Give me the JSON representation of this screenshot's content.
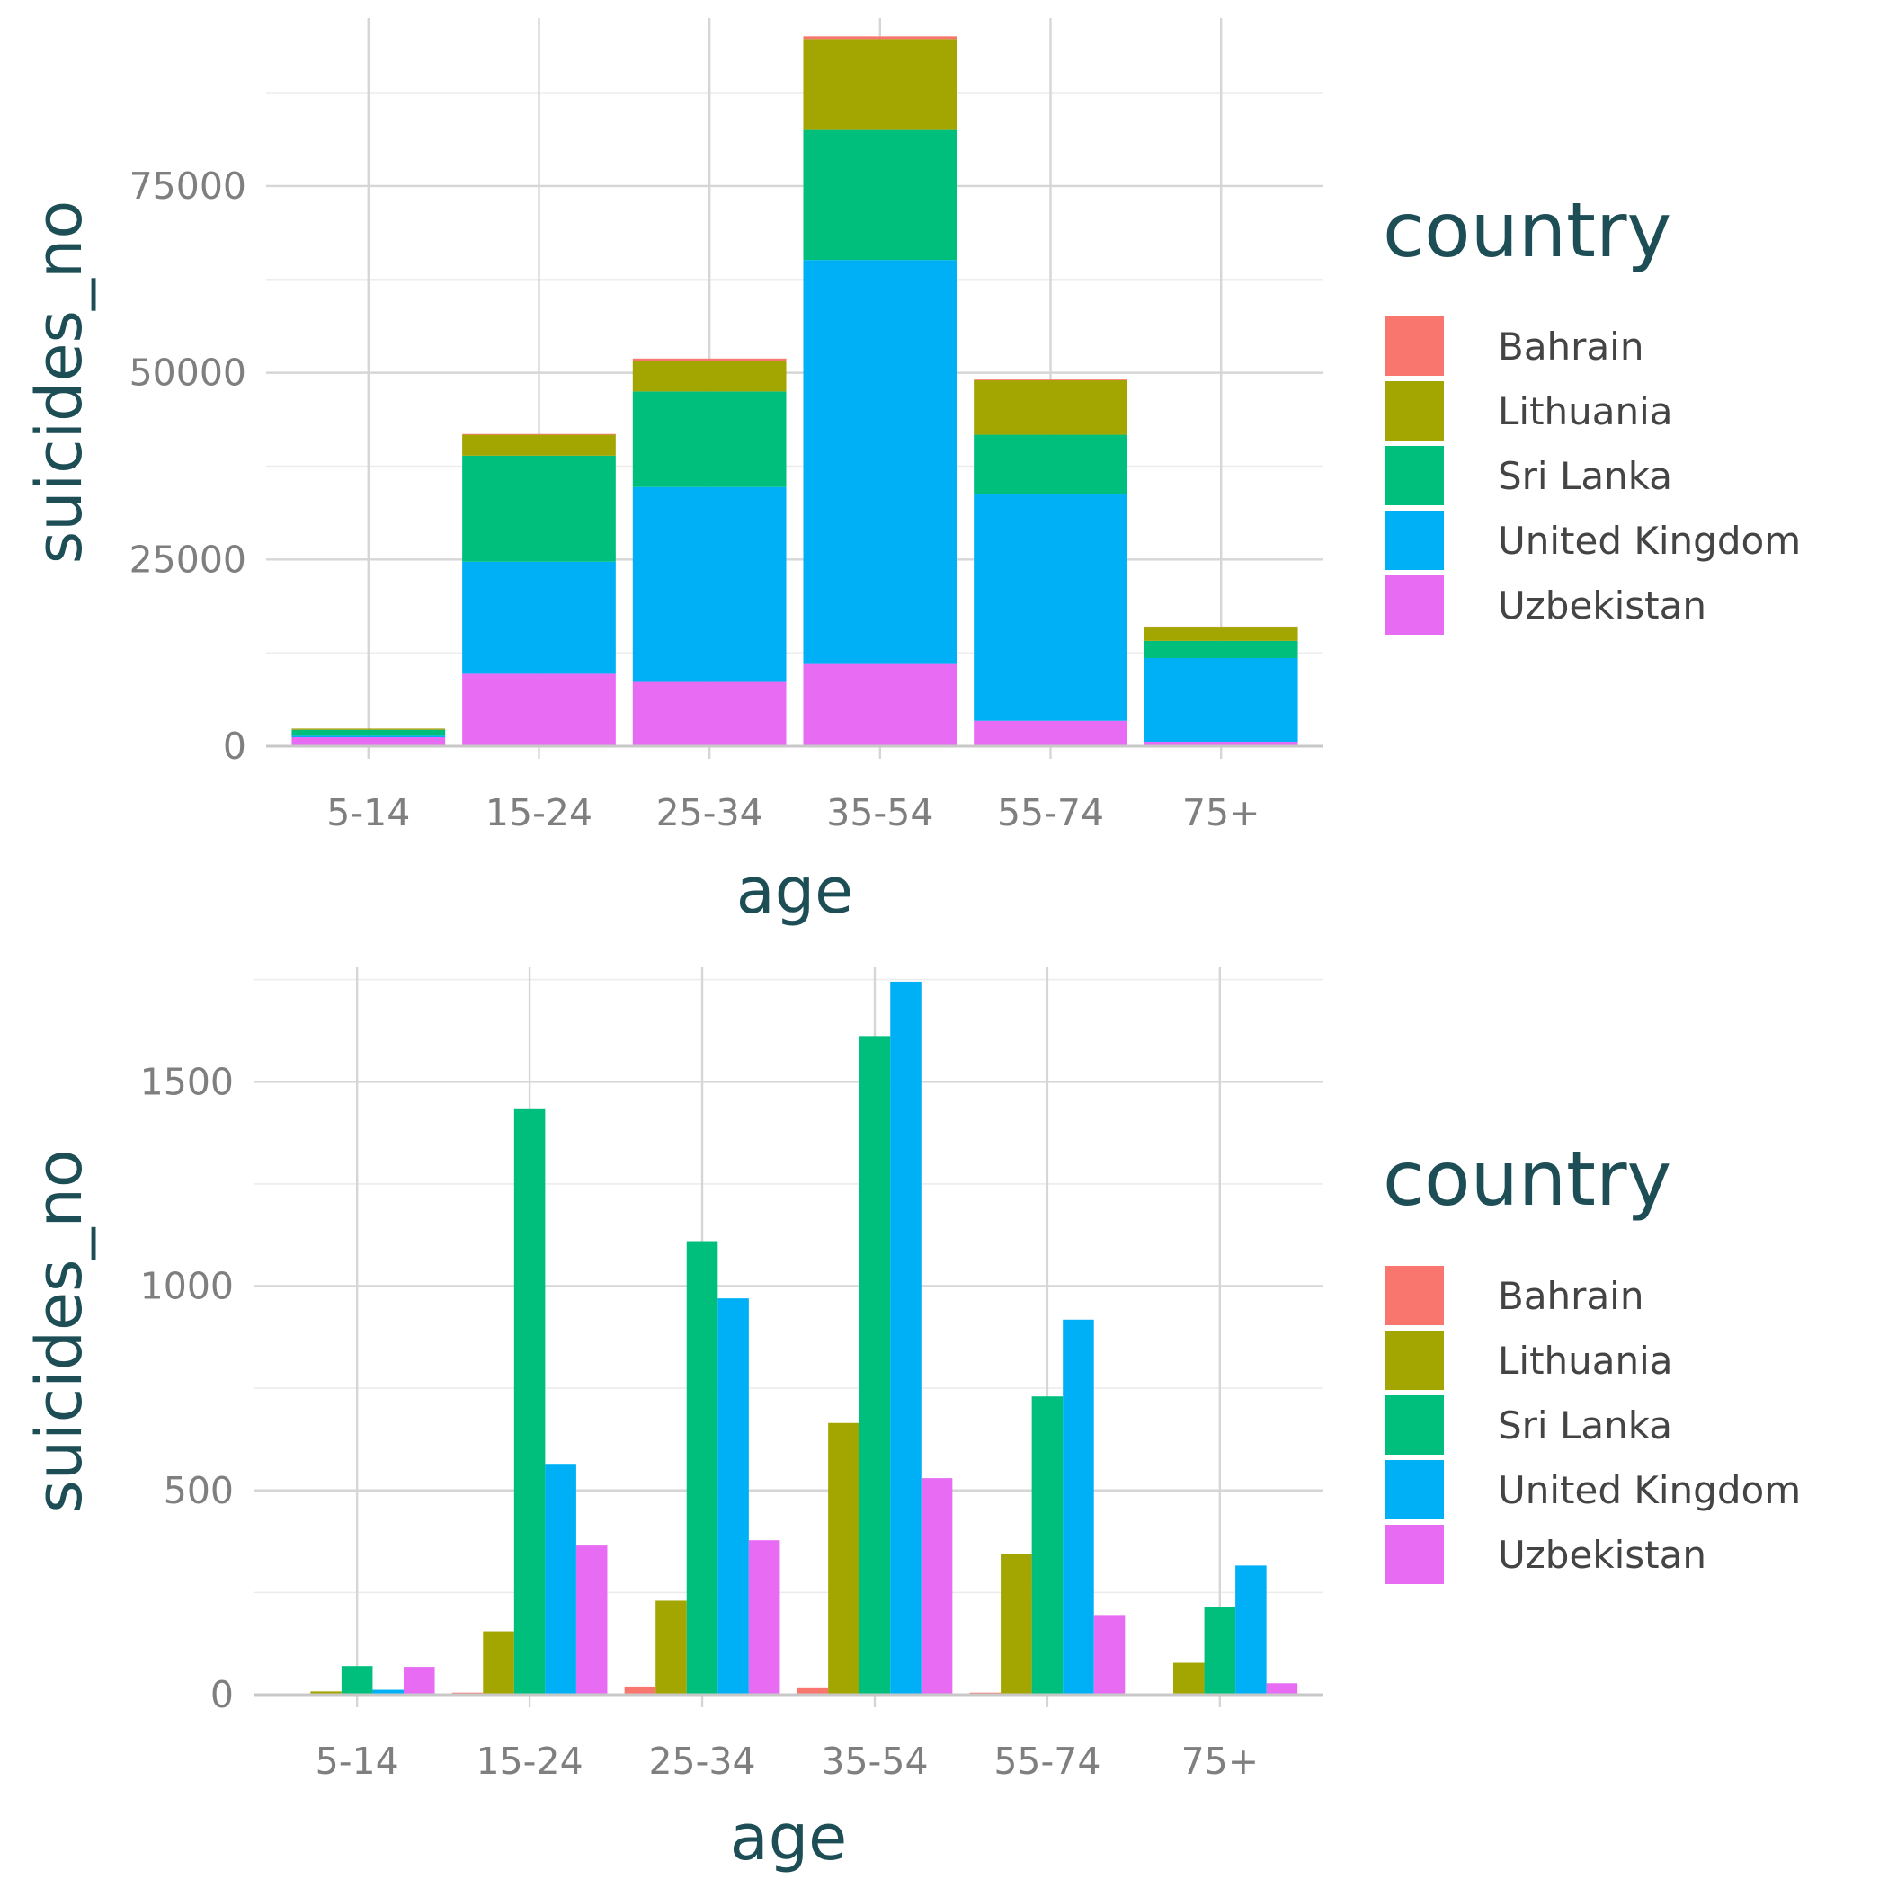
{
  "chart_data": [
    {
      "type": "bar",
      "stacked": true,
      "xlabel": "age",
      "ylabel": "suicides_no",
      "categories": [
        "5-14",
        "15-24",
        "25-34",
        "35-54",
        "55-74",
        "75+"
      ],
      "ylim": [
        0,
        97500
      ],
      "yticks": [
        0,
        25000,
        50000,
        75000
      ],
      "grid": true,
      "legend": {
        "title": "country",
        "position": "right"
      },
      "series": [
        {
          "name": "Bahrain",
          "color": "#F8766D",
          "values": [
            10,
            100,
            300,
            350,
            100,
            20
          ]
        },
        {
          "name": "Lithuania",
          "color": "#A3A500",
          "values": [
            150,
            2800,
            4100,
            12200,
            7300,
            1900
          ]
        },
        {
          "name": "Sri Lanka",
          "color": "#00BF7D",
          "values": [
            800,
            14200,
            12800,
            17400,
            8000,
            2300
          ]
        },
        {
          "name": "United Kingdom",
          "color": "#00B0F6",
          "values": [
            200,
            15000,
            26100,
            54100,
            30300,
            11200
          ]
        },
        {
          "name": "Uzbekistan",
          "color": "#E76BF3",
          "values": [
            1200,
            9700,
            8600,
            11000,
            3400,
            600
          ]
        }
      ]
    },
    {
      "type": "bar",
      "stacked": false,
      "xlabel": "age",
      "ylabel": "suicides_no",
      "categories": [
        "5-14",
        "15-24",
        "25-34",
        "35-54",
        "55-74",
        "75+"
      ],
      "ylim": [
        0,
        1780
      ],
      "yticks": [
        0,
        500,
        1000,
        1500
      ],
      "grid": true,
      "legend": {
        "title": "country",
        "position": "right"
      },
      "series": [
        {
          "name": "Bahrain",
          "color": "#F8766D",
          "values": [
            3,
            5,
            20,
            18,
            5,
            0
          ]
        },
        {
          "name": "Lithuania",
          "color": "#A3A500",
          "values": [
            8,
            155,
            230,
            665,
            345,
            78
          ]
        },
        {
          "name": "Sri Lanka",
          "color": "#00BF7D",
          "values": [
            70,
            1435,
            1110,
            1612,
            730,
            215
          ]
        },
        {
          "name": "United Kingdom",
          "color": "#00B0F6",
          "values": [
            12,
            565,
            970,
            1745,
            918,
            316
          ]
        },
        {
          "name": "Uzbekistan",
          "color": "#E76BF3",
          "values": [
            68,
            365,
            378,
            530,
            195,
            28
          ]
        }
      ]
    }
  ]
}
